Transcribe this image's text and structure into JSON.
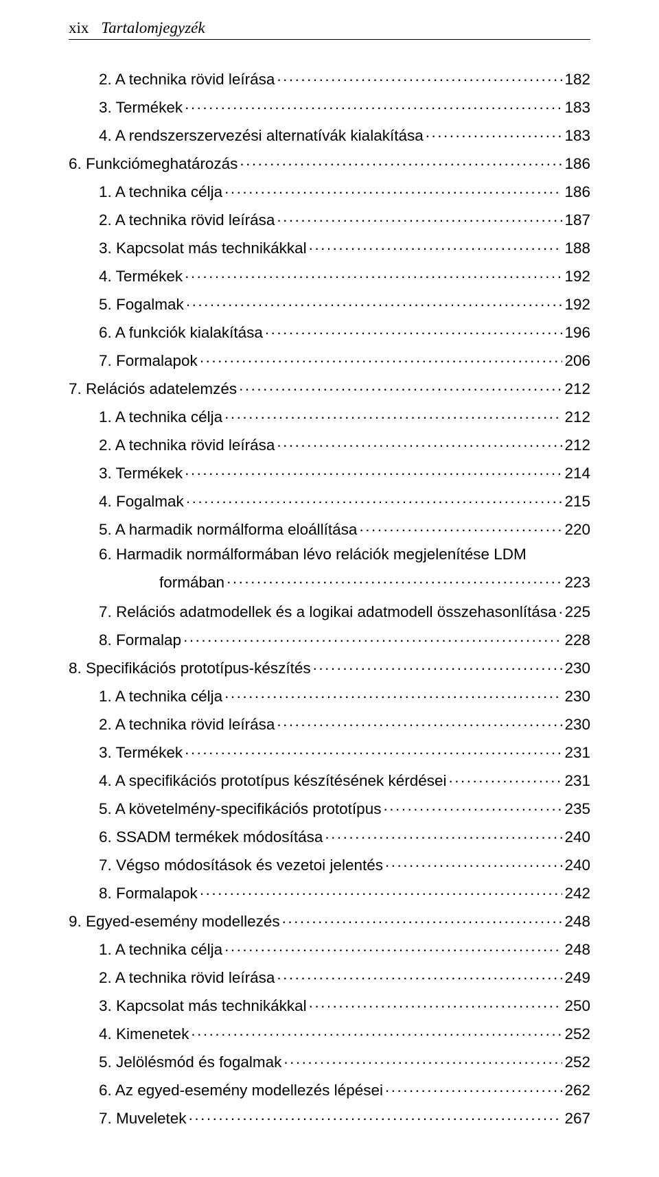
{
  "header": {
    "page_num": "xix",
    "title": "Tartalomjegyzék"
  },
  "toc": [
    {
      "indent": 1,
      "text": "2. A technika rövid leírása",
      "page": "182"
    },
    {
      "indent": 1,
      "text": "3. Termékek",
      "page": "183"
    },
    {
      "indent": 1,
      "text": "4. A rendszerszervezési alternatívák kialakítása",
      "page": "183"
    },
    {
      "indent": 0,
      "text": "6. Funkciómeghatározás",
      "page": "186"
    },
    {
      "indent": 1,
      "text": "1. A technika célja",
      "page": "186"
    },
    {
      "indent": 1,
      "text": "2. A technika rövid leírása",
      "page": "187"
    },
    {
      "indent": 1,
      "text": "3. Kapcsolat más technikákkal",
      "page": "188"
    },
    {
      "indent": 1,
      "text": "4. Termékek",
      "page": "192"
    },
    {
      "indent": 1,
      "text": "5. Fogalmak",
      "page": "192"
    },
    {
      "indent": 1,
      "text": "6. A funkciók kialakítása",
      "page": "196"
    },
    {
      "indent": 1,
      "text": "7. Formalapok",
      "page": "206"
    },
    {
      "indent": 0,
      "text": "7. Relációs adatelemzés",
      "page": "212"
    },
    {
      "indent": 1,
      "text": "1. A technika célja",
      "page": "212"
    },
    {
      "indent": 1,
      "text": "2. A technika rövid leírása",
      "page": "212"
    },
    {
      "indent": 1,
      "text": "3. Termékek",
      "page": "214"
    },
    {
      "indent": 1,
      "text": "4. Fogalmak",
      "page": "215"
    },
    {
      "indent": 1,
      "text": "5. A harmadik normálforma eloállítása",
      "page": "220"
    },
    {
      "indent": 1,
      "text": "6. Harmadik normálformában lévo relációk megjelenítése LDM",
      "wrap": true
    },
    {
      "indent": "hang2",
      "text": "formában",
      "page": "223"
    },
    {
      "indent": 1,
      "text": "7. Relációs adatmodellek és a logikai adatmodell összehasonlítása",
      "page": "225"
    },
    {
      "indent": 1,
      "text": "8. Formalap",
      "page": "228"
    },
    {
      "indent": 0,
      "text": "8. Specifikációs prototípus-készítés",
      "page": "230"
    },
    {
      "indent": 1,
      "text": "1. A technika célja",
      "page": "230"
    },
    {
      "indent": 1,
      "text": "2. A technika rövid leírása",
      "page": "230"
    },
    {
      "indent": 1,
      "text": "3. Termékek",
      "page": "231"
    },
    {
      "indent": 1,
      "text": "4. A specifikációs prototípus készítésének kérdései",
      "page": "231"
    },
    {
      "indent": 1,
      "text": "5. A követelmény-specifikációs prototípus",
      "page": "235"
    },
    {
      "indent": 1,
      "text": "6. SSADM termékek módosítása",
      "page": "240"
    },
    {
      "indent": 1,
      "text": "7. Végso módosítások és vezetoi jelentés",
      "page": "240"
    },
    {
      "indent": 1,
      "text": "8. Formalapok",
      "page": "242"
    },
    {
      "indent": 0,
      "text": "9. Egyed-esemény modellezés",
      "page": "248"
    },
    {
      "indent": 1,
      "text": "1. A technika célja",
      "page": "248"
    },
    {
      "indent": 1,
      "text": "2. A technika rövid leírása",
      "page": "249"
    },
    {
      "indent": 1,
      "text": "3. Kapcsolat más technikákkal",
      "page": "250"
    },
    {
      "indent": 1,
      "text": "4. Kimenetek",
      "page": "252"
    },
    {
      "indent": 1,
      "text": "5. Jelölésmód és fogalmak",
      "page": "252"
    },
    {
      "indent": 1,
      "text": "6. Az egyed-esemény modellezés lépései",
      "page": "262"
    },
    {
      "indent": 1,
      "text": "7. Muveletek",
      "page": "267"
    }
  ]
}
